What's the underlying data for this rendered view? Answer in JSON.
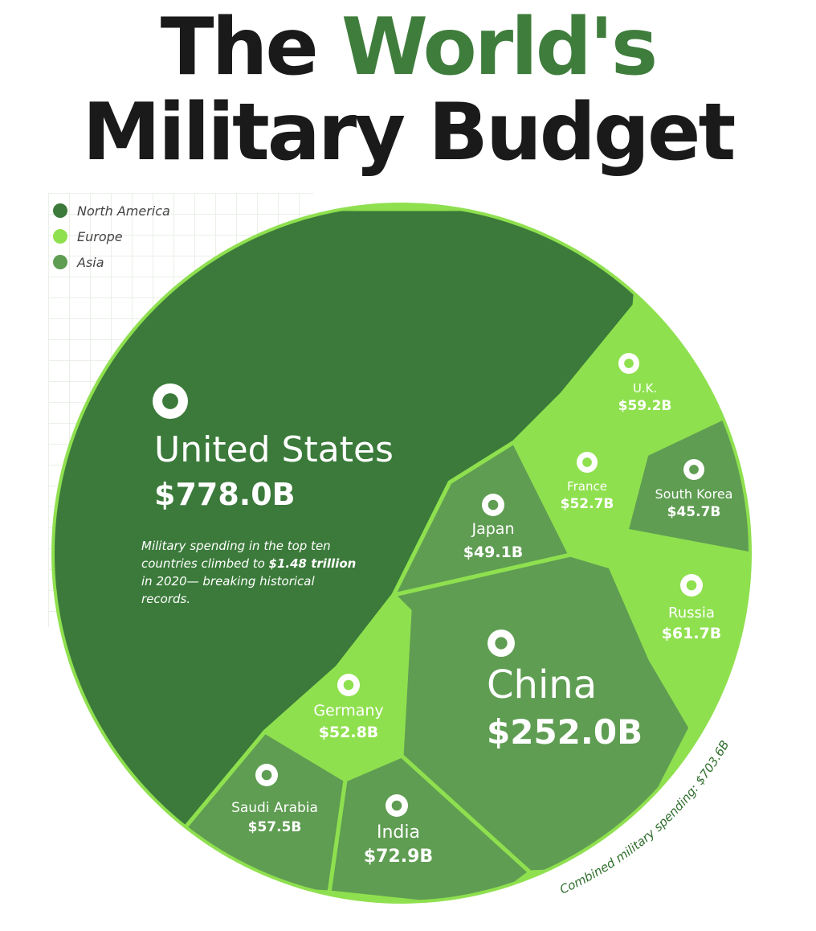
{
  "title": {
    "part1": "The ",
    "part2": "World's",
    "line2": "Military Budget"
  },
  "legend": [
    {
      "label": "North America",
      "color": "#3b7a3a"
    },
    {
      "label": "Europe",
      "color": "#8fe04f"
    },
    {
      "label": "Asia",
      "color": "#5f9d52"
    }
  ],
  "note": {
    "pre": "Military spending in the top ten countries climbed to ",
    "bold": "$1.48 trillion",
    "post": " in 2020— breaking historical records."
  },
  "combined_caption": "Combined military spending: $703.6B",
  "colors": {
    "north_america": "#3b7a3a",
    "europe": "#8fe04f",
    "asia": "#5f9d52",
    "border": "#8fe04f"
  },
  "chart_data": {
    "type": "voronoi-treemap",
    "title": "The World's Military Budget",
    "unit": "$B",
    "series": [
      {
        "name": "United States",
        "value": 778.0,
        "label": "$778.0B",
        "region": "North America"
      },
      {
        "name": "China",
        "value": 252.0,
        "label": "$252.0B",
        "region": "Asia"
      },
      {
        "name": "India",
        "value": 72.9,
        "label": "$72.9B",
        "region": "Asia"
      },
      {
        "name": "Russia",
        "value": 61.7,
        "label": "$61.7B",
        "region": "Europe"
      },
      {
        "name": "U.K.",
        "value": 59.2,
        "label": "$59.2B",
        "region": "Europe"
      },
      {
        "name": "Saudi Arabia",
        "value": 57.5,
        "label": "$57.5B",
        "region": "Asia"
      },
      {
        "name": "Germany",
        "value": 52.8,
        "label": "$52.8B",
        "region": "Europe"
      },
      {
        "name": "France",
        "value": 52.7,
        "label": "$52.7B",
        "region": "Europe"
      },
      {
        "name": "Japan",
        "value": 49.1,
        "label": "$49.1B",
        "region": "Asia"
      },
      {
        "name": "South Korea",
        "value": 45.7,
        "label": "$45.7B",
        "region": "Asia"
      }
    ]
  }
}
